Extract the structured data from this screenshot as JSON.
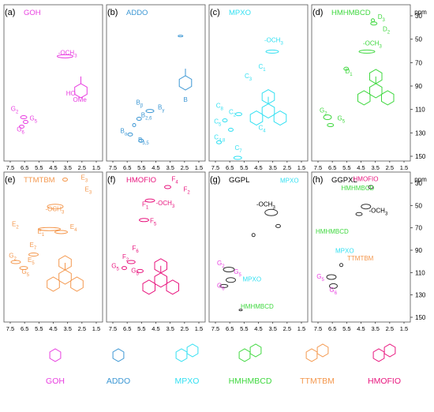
{
  "colors": {
    "GOH": "#e83ee0",
    "ADDO": "#3c97d4",
    "MPXO": "#33e0f2",
    "HMHMBCD": "#3fd83f",
    "TTMTBM": "#f4984e",
    "HMOFIO": "#e8157e",
    "black": "#000000",
    "grey": "#888888"
  },
  "axes": {
    "x_ticks": [
      "7.5",
      "6.5",
      "5.5",
      "4.5",
      "3.5",
      "2.5",
      "1.5"
    ],
    "y_ticks": [
      "30",
      "50",
      "70",
      "90",
      "110",
      "130",
      "150"
    ],
    "unit": "ppm"
  },
  "panels": [
    {
      "letter": "(a)",
      "title": "GOH",
      "color": "#e83ee0",
      "labels": [
        {
          "t": "-OCH3",
          "c": "#e83ee0"
        },
        {
          "t": "G2",
          "c": "#e83ee0"
        },
        {
          "t": "G5",
          "c": "#e83ee0"
        },
        {
          "t": "G6",
          "c": "#e83ee0"
        },
        {
          "t": "HO",
          "c": "#e83ee0"
        },
        {
          "t": "OMe",
          "c": "#e83ee0"
        }
      ]
    },
    {
      "letter": "(b)",
      "title": "ADDO",
      "color": "#3c97d4",
      "labels": [
        {
          "t": "Bβ",
          "c": "#3c97d4"
        },
        {
          "t": "Bγ",
          "c": "#3c97d4"
        },
        {
          "t": "B2,6",
          "c": "#3c97d4"
        },
        {
          "t": "Bα",
          "c": "#3c97d4"
        },
        {
          "t": "B3,5",
          "c": "#3c97d4"
        },
        {
          "t": "B",
          "c": "#3c97d4"
        }
      ]
    },
    {
      "letter": "(c)",
      "title": "MPXO",
      "color": "#33e0f2",
      "labels": [
        {
          "t": "-OCH3",
          "c": "#33e0f2"
        },
        {
          "t": "C1",
          "c": "#33e0f2"
        },
        {
          "t": "C3",
          "c": "#33e0f2"
        },
        {
          "t": "C8",
          "c": "#33e0f2"
        },
        {
          "t": "C2",
          "c": "#33e0f2"
        },
        {
          "t": "C5",
          "c": "#33e0f2"
        },
        {
          "t": "C4",
          "c": "#33e0f2"
        },
        {
          "t": "C4,8",
          "c": "#33e0f2"
        },
        {
          "t": "C7",
          "c": "#33e0f2"
        }
      ]
    },
    {
      "letter": "(d)",
      "title": "HMHMBCD",
      "color": "#3fd83f",
      "labels": [
        {
          "t": "D3",
          "c": "#3fd83f"
        },
        {
          "t": "D2",
          "c": "#3fd83f"
        },
        {
          "t": "-OCH3",
          "c": "#3fd83f"
        },
        {
          "t": "D1",
          "c": "#3fd83f"
        },
        {
          "t": "G2",
          "c": "#3fd83f"
        },
        {
          "t": "G5",
          "c": "#3fd83f"
        }
      ]
    },
    {
      "letter": "(e)",
      "title": "TTMTBM",
      "color": "#f4984e",
      "labels": [
        {
          "t": "E3",
          "c": "#f4984e"
        },
        {
          "t": "E3",
          "c": "#f4984e"
        },
        {
          "t": "-OCH3",
          "c": "#f4984e"
        },
        {
          "t": "E2",
          "c": "#f4984e"
        },
        {
          "t": "E4",
          "c": "#f4984e"
        },
        {
          "t": "E1",
          "c": "#f4984e"
        },
        {
          "t": "E7",
          "c": "#f4984e"
        },
        {
          "t": "E5",
          "c": "#f4984e"
        },
        {
          "t": "G2",
          "c": "#f4984e"
        },
        {
          "t": "G5",
          "c": "#f4984e"
        }
      ]
    },
    {
      "letter": "(f)",
      "title": "HMOFIO",
      "color": "#e8157e",
      "labels": [
        {
          "t": "F4",
          "c": "#e8157e"
        },
        {
          "t": "F2",
          "c": "#e8157e"
        },
        {
          "t": "F1",
          "c": "#e8157e"
        },
        {
          "t": "-OCH3",
          "c": "#e8157e"
        },
        {
          "t": "F5",
          "c": "#e8157e"
        },
        {
          "t": "F6",
          "c": "#e8157e"
        },
        {
          "t": "F2",
          "c": "#e8157e"
        },
        {
          "t": "G5",
          "c": "#e8157e"
        },
        {
          "t": "G5",
          "c": "#e8157e"
        }
      ]
    },
    {
      "letter": "(g)",
      "title": "GGPL",
      "color": "#000000",
      "labels": [
        {
          "t": "MPXO",
          "c": "#33e0f2"
        },
        {
          "t": "-OCH3",
          "c": "#000000"
        },
        {
          "t": "G2",
          "c": "#e83ee0"
        },
        {
          "t": "G5",
          "c": "#e83ee0"
        },
        {
          "t": "G6",
          "c": "#e83ee0"
        },
        {
          "t": "MPXO",
          "c": "#33e0f2"
        },
        {
          "t": "HMHMBCD",
          "c": "#3fd83f"
        }
      ]
    },
    {
      "letter": "(h)",
      "title": "GGPXL",
      "color": "#000000",
      "labels": [
        {
          "t": "HMOFIO",
          "c": "#e8157e"
        },
        {
          "t": "HMHMBCD",
          "c": "#3fd83f"
        },
        {
          "t": "-OCH3",
          "c": "#000000"
        },
        {
          "t": "HMHMBCD",
          "c": "#3fd83f"
        },
        {
          "t": "MPXO",
          "c": "#33e0f2"
        },
        {
          "t": "TTMTBM",
          "c": "#f4984e"
        },
        {
          "t": "G5",
          "c": "#e83ee0"
        },
        {
          "t": "G6",
          "c": "#e83ee0"
        }
      ]
    }
  ],
  "legend": [
    {
      "name": "GOH",
      "color": "#e83ee0"
    },
    {
      "name": "ADDO",
      "color": "#3c97d4"
    },
    {
      "name": "MPXO",
      "color": "#33e0f2"
    },
    {
      "name": "HMHMBCD",
      "color": "#3fd83f"
    },
    {
      "name": "TTMTBM",
      "color": "#f4984e"
    },
    {
      "name": "HMOFIO",
      "color": "#e8157e"
    }
  ]
}
